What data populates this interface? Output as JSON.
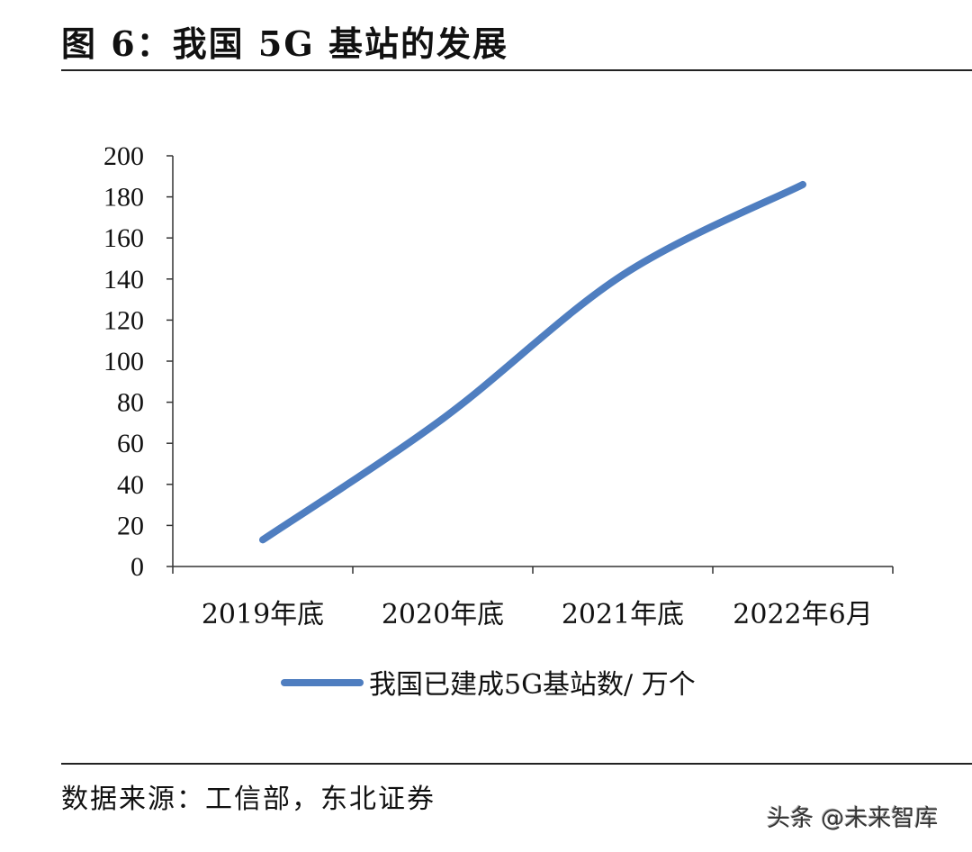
{
  "title": "图 6：我国 5G 基站的发展",
  "source": "数据来源：工信部，东北证券",
  "watermark": "头条 @未来智库",
  "chart_data": {
    "type": "line",
    "title": "",
    "xlabel": "",
    "ylabel": "",
    "categories": [
      "2019年底",
      "2020年底",
      "2021年底",
      "2022年6月"
    ],
    "series": [
      {
        "name": "我国已建成5G基站数/ 万个",
        "values": [
          13,
          72,
          142,
          186
        ],
        "color": "#4f7ec0"
      }
    ],
    "ylim": [
      0,
      200
    ],
    "yticks": [
      0,
      20,
      40,
      60,
      80,
      100,
      120,
      140,
      160,
      180,
      200
    ],
    "grid": false,
    "legend": "bottom",
    "smooth": true
  }
}
